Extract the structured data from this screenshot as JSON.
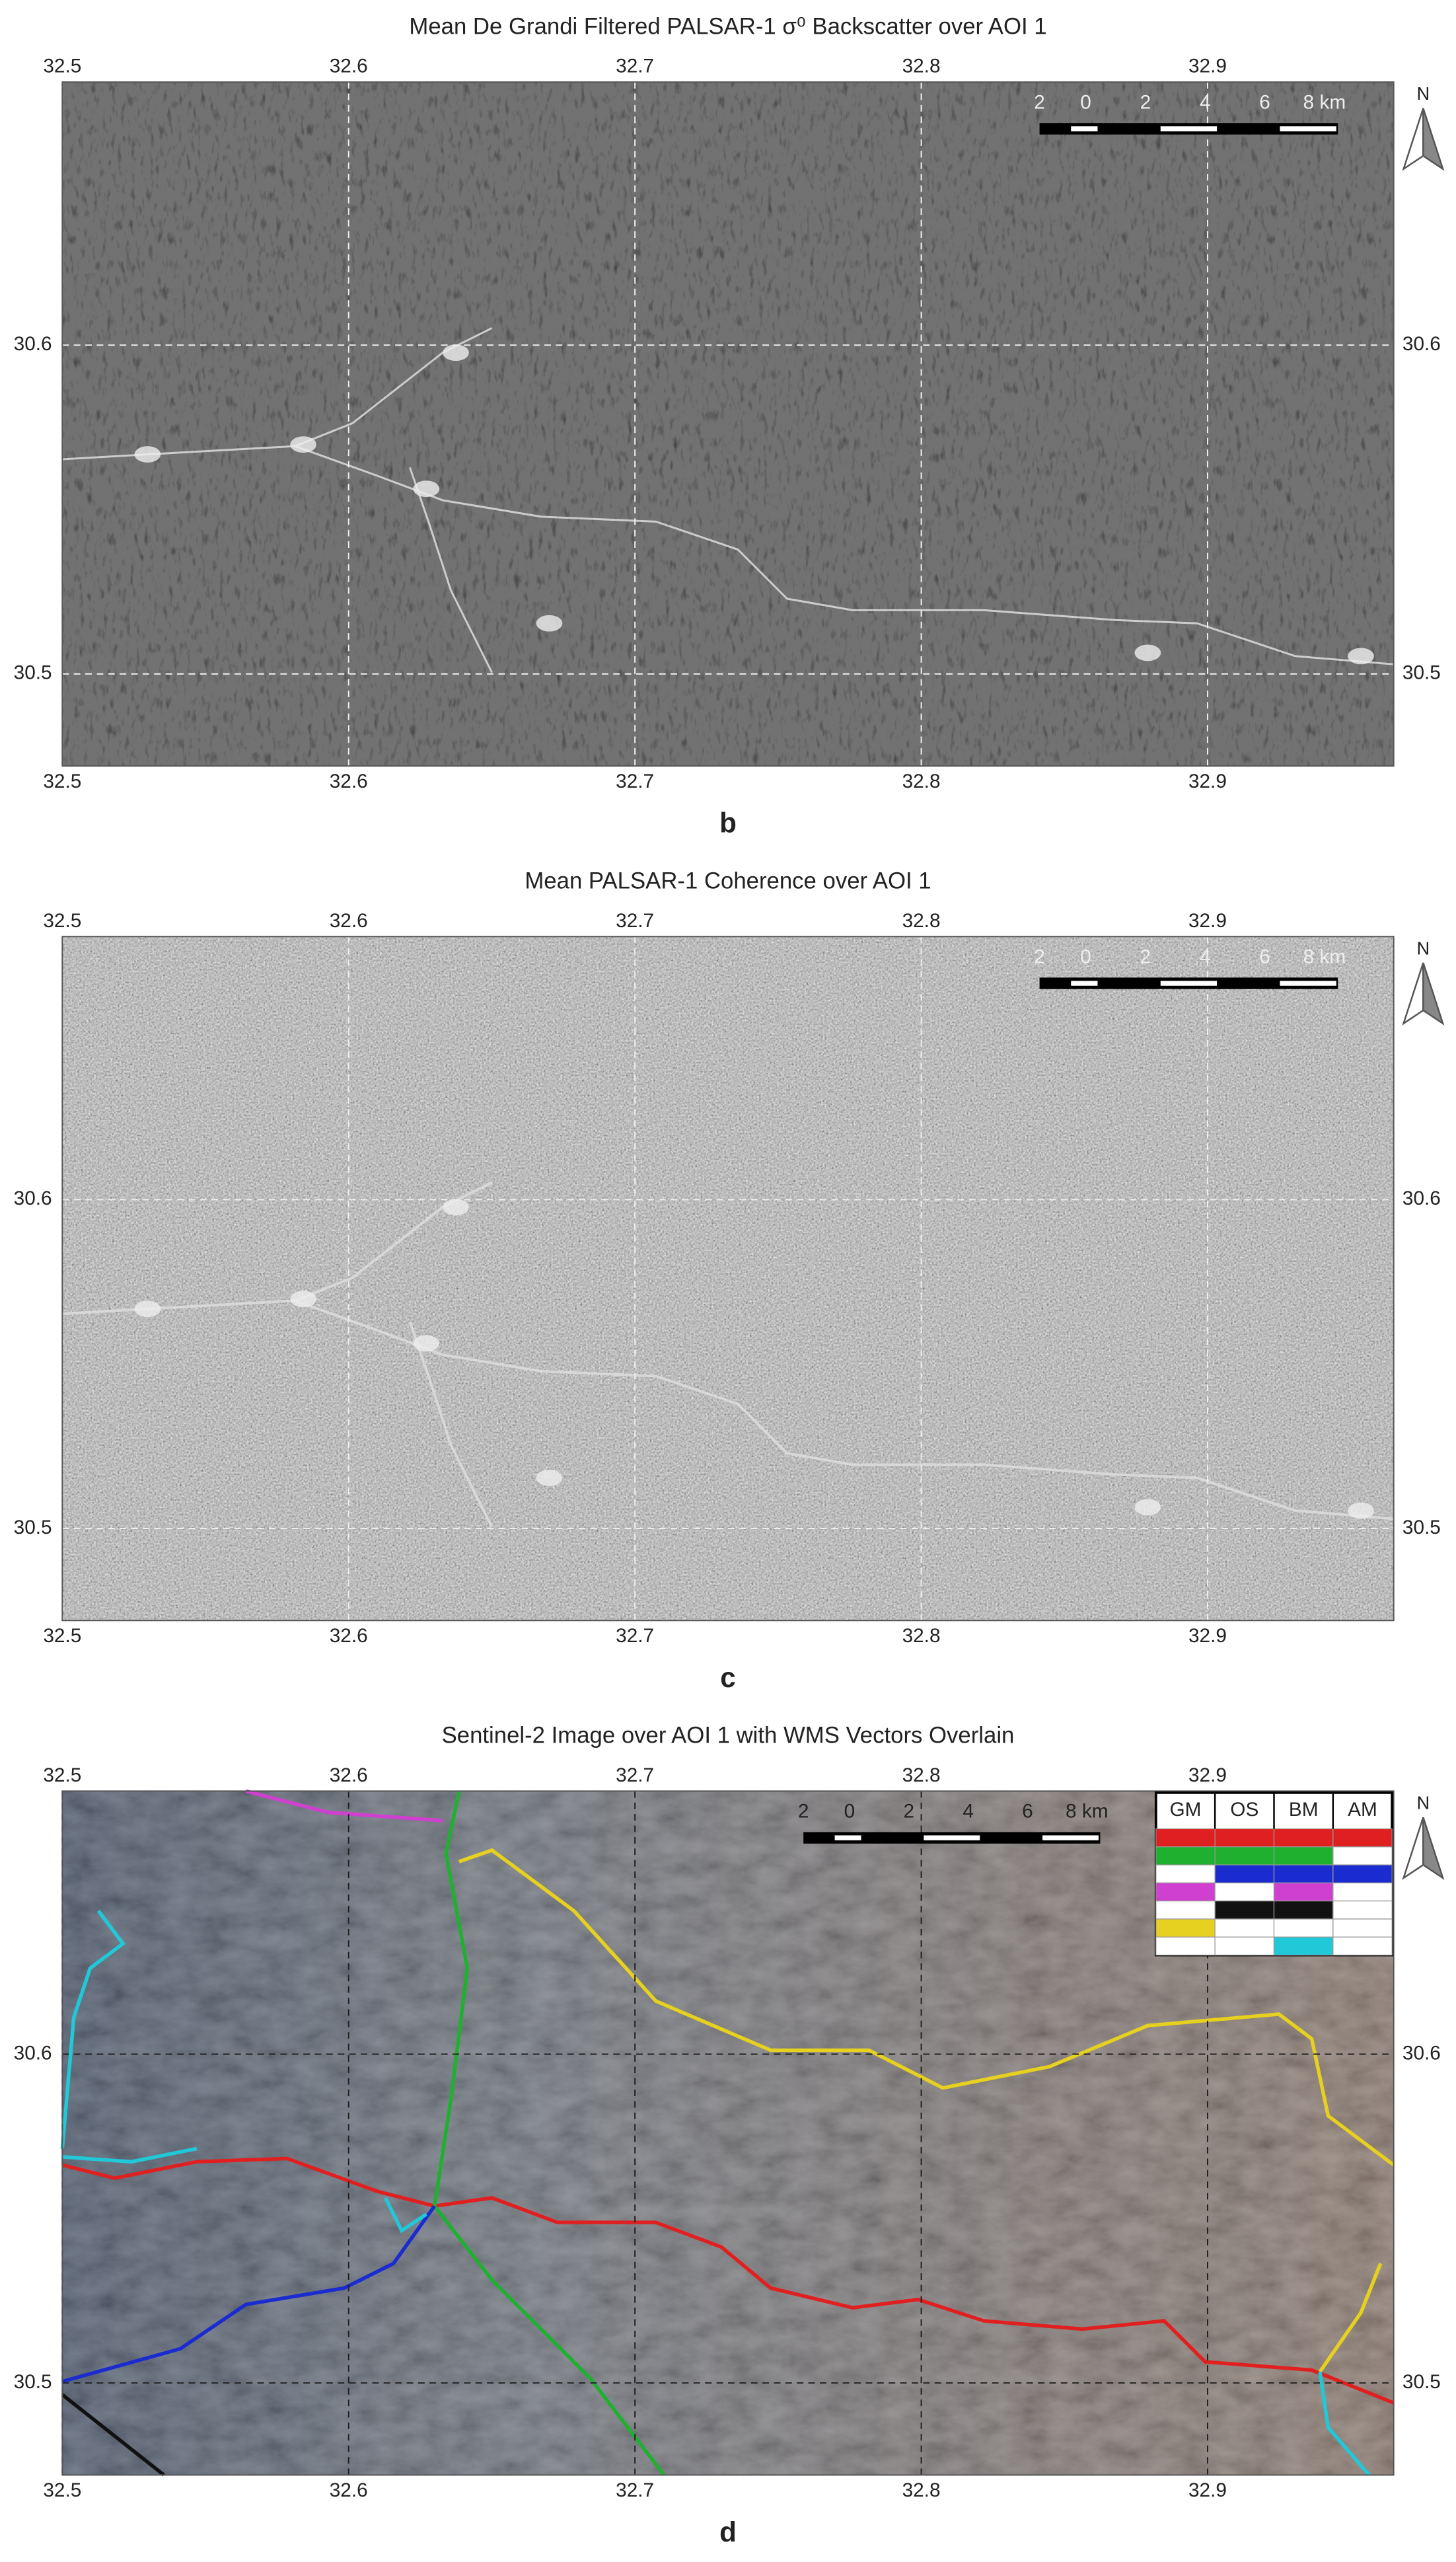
{
  "panels": [
    {
      "title": "Mean De Grandi Filtered PALSAR-1 σ⁰ Backscatter over AOI 1",
      "label": "b"
    },
    {
      "title": "Mean PALSAR-1 Coherence over AOI 1",
      "label": "c"
    },
    {
      "title": "Sentinel-2 Image over AOI 1 with WMS Vectors Overlain",
      "label": "d",
      "legend": {
        "headers": [
          "GM",
          "OS",
          "BM",
          "AM"
        ]
      }
    }
  ],
  "xticks": [
    32.5,
    32.6,
    32.7,
    32.8,
    32.9
  ],
  "yticks": [
    30.6,
    30.5
  ],
  "xlim": [
    32.5,
    32.965
  ],
  "ylim": [
    30.472,
    30.68
  ],
  "scale_bar": [
    "2",
    "0",
    "2",
    "4",
    "6",
    "8 km"
  ],
  "north": "N"
}
